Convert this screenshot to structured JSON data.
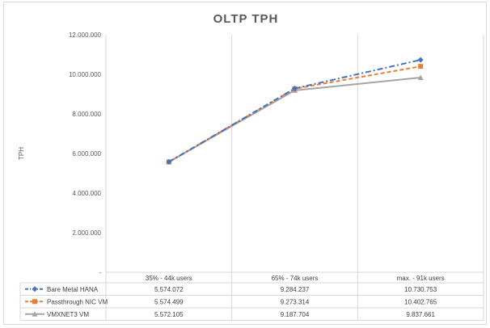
{
  "chart_data": {
    "type": "line",
    "title": "OLTP TPH",
    "ylabel": "TPH",
    "xlabel": "",
    "categories": [
      "35% - 44k users",
      "65% - 74k users",
      "max. - 91k users"
    ],
    "ylim": [
      0,
      12000000
    ],
    "yticks": [
      "-",
      "2.000.000",
      "4.000.000",
      "6.000.000",
      "8.000.000",
      "10.000.000",
      "12.000.000"
    ],
    "grid": "vertical category lines",
    "legend": "data table below chart",
    "series": [
      {
        "name": "Bare Metal HANA",
        "values": [
          5574072,
          9284237,
          10730753
        ],
        "labels": [
          "5.574.072",
          "9.284.237",
          "10.730.753"
        ],
        "color": "#4472c4",
        "dash": "dash-dot",
        "marker": "diamond"
      },
      {
        "name": "Passthrough NIC VM",
        "values": [
          5574499,
          9273314,
          10402765
        ],
        "labels": [
          "5.574.499",
          "9.273.314",
          "10.402.765"
        ],
        "color": "#ed7d31",
        "dash": "dash",
        "marker": "square"
      },
      {
        "name": "VMXNET3 VM",
        "values": [
          5572105,
          9187704,
          9837661
        ],
        "labels": [
          "5.572.105",
          "9.187.704",
          "9.837.661"
        ],
        "color": "#a5a5a5",
        "dash": "solid",
        "marker": "triangle"
      }
    ]
  }
}
